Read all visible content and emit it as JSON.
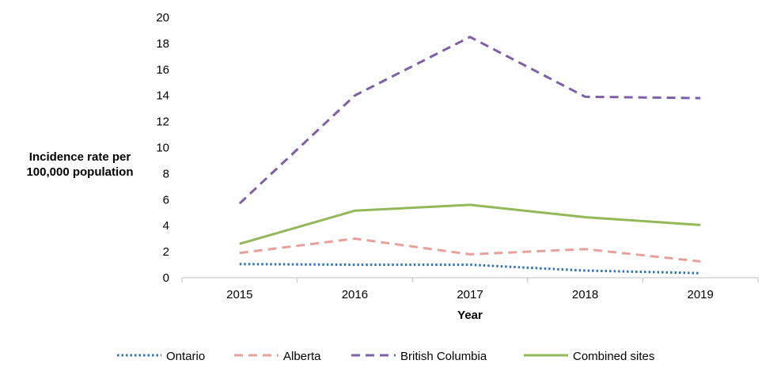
{
  "chart_data": {
    "type": "line",
    "categories": [
      "2015",
      "2016",
      "2017",
      "2018",
      "2019"
    ],
    "series": [
      {
        "name": "Ontario",
        "values": [
          1.05,
          1.0,
          1.0,
          0.55,
          0.35
        ],
        "color": "#2E75B6",
        "style": "dotted"
      },
      {
        "name": "Alberta",
        "values": [
          1.9,
          3.0,
          1.8,
          2.2,
          1.25
        ],
        "color": "#E8A09A",
        "style": "dashed"
      },
      {
        "name": "British Columbia",
        "values": [
          5.7,
          14.0,
          18.5,
          13.9,
          13.8
        ],
        "color": "#7E5FA8",
        "style": "dashed"
      },
      {
        "name": "Combined sites",
        "values": [
          2.6,
          5.15,
          5.6,
          4.65,
          4.05
        ],
        "color": "#92B85A",
        "style": "solid"
      }
    ],
    "yticks": [
      "0",
      "2",
      "4",
      "6",
      "8",
      "10",
      "12",
      "14",
      "16",
      "18",
      "20"
    ],
    "ylim": [
      0,
      20
    ],
    "xlabel": "Year",
    "ylabel_lines": [
      "Incidence rate per",
      "100,000 population"
    ],
    "grid": false,
    "legend_position": "bottom"
  }
}
